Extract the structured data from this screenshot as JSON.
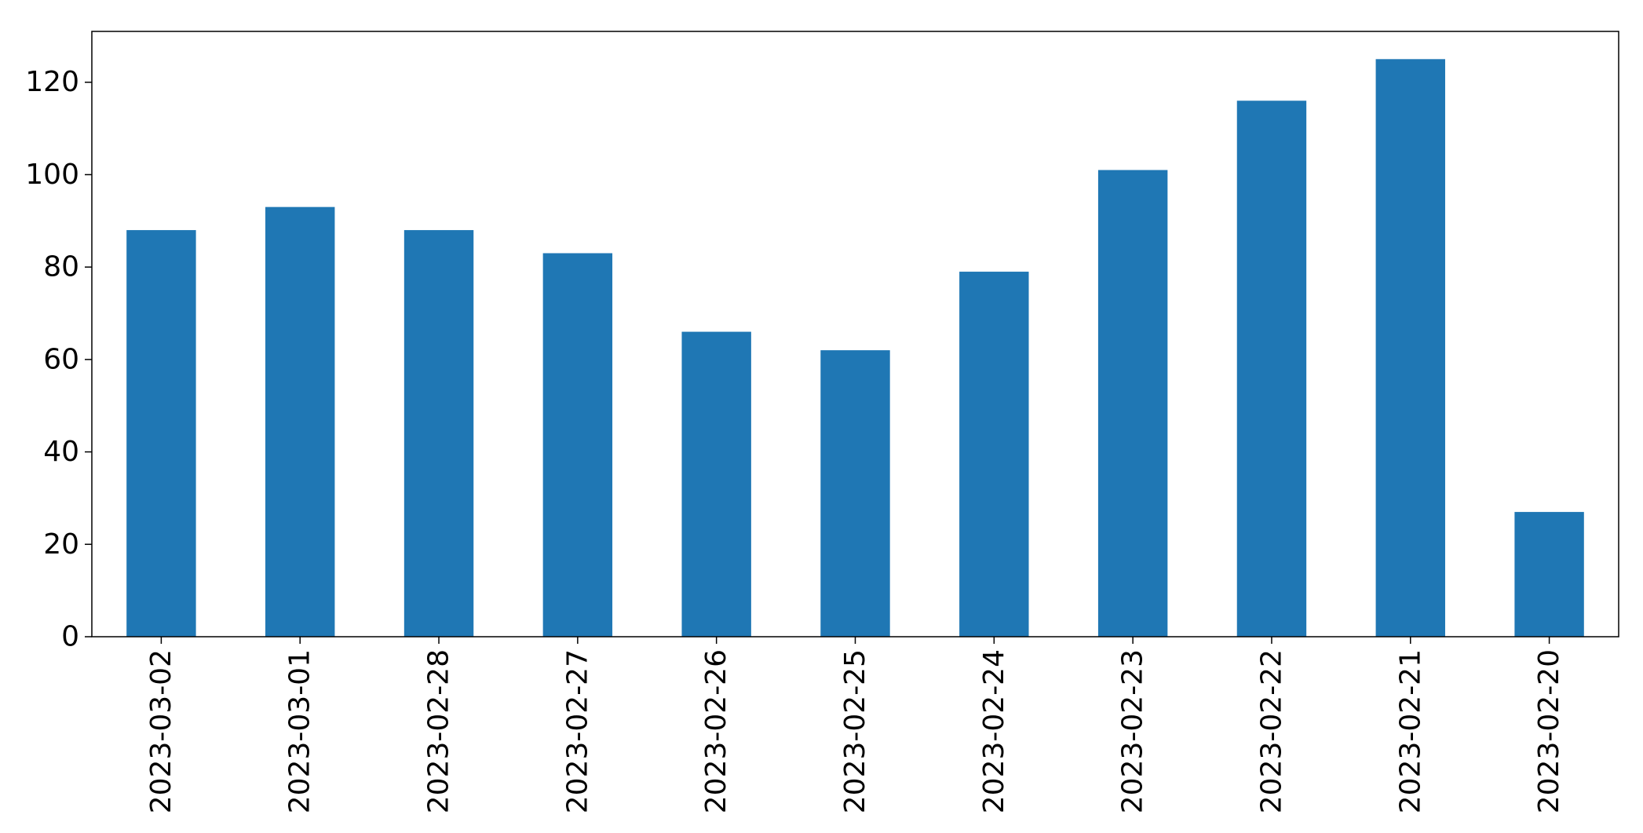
{
  "chart_data": {
    "type": "bar",
    "title": "",
    "xlabel": "",
    "ylabel": "",
    "categories": [
      "2023-03-02",
      "2023-03-01",
      "2023-02-28",
      "2023-02-27",
      "2023-02-26",
      "2023-02-25",
      "2023-02-24",
      "2023-02-23",
      "2023-02-22",
      "2023-02-21",
      "2023-02-20"
    ],
    "values": [
      88,
      93,
      88,
      83,
      66,
      62,
      79,
      101,
      116,
      125,
      27
    ],
    "ylim": [
      0,
      131
    ],
    "yticks": [
      0,
      20,
      40,
      60,
      80,
      100,
      120
    ],
    "bar_color": "#1f77b4",
    "grid": false,
    "legend": "none",
    "x_tick_rotation": "vertical"
  }
}
